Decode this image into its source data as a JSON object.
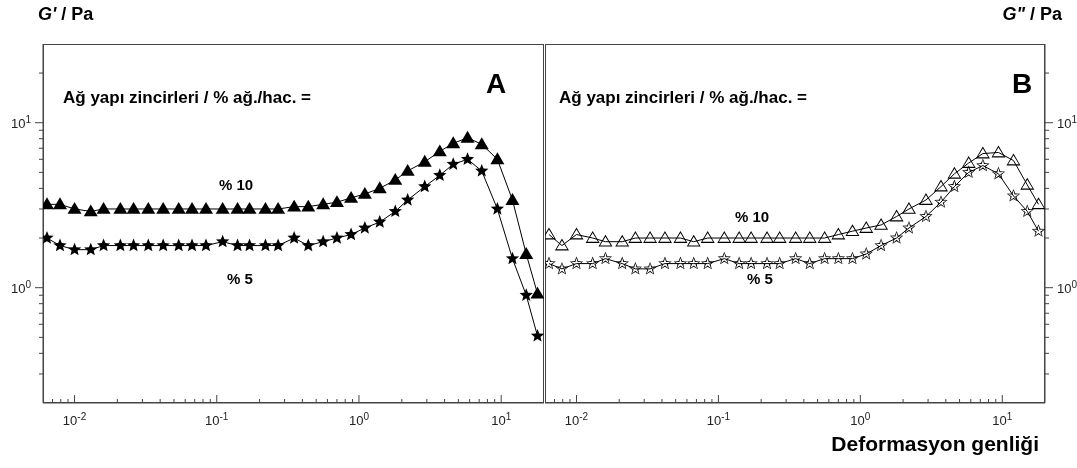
{
  "chart_data": [
    {
      "type": "line",
      "ylabel": "G' / Pa",
      "annotations": [
        "Ağ yapı zincirleri / % ağ./hac. =",
        "A"
      ],
      "x": [
        0.0064,
        0.0079,
        0.01,
        0.013,
        0.016,
        0.021,
        0.026,
        0.033,
        0.042,
        0.054,
        0.067,
        0.084,
        0.11,
        0.14,
        0.17,
        0.22,
        0.27,
        0.35,
        0.44,
        0.56,
        0.7,
        0.88,
        1.1,
        1.4,
        1.8,
        2.2,
        2.9,
        3.7,
        4.6,
        5.8,
        7.3,
        9.4,
        12,
        15,
        18
      ],
      "series": [
        {
          "name": "% 10",
          "color": "#000000",
          "marker": "triangle",
          "values": [
            3.2,
            3.2,
            3.0,
            2.9,
            3.0,
            3.0,
            3.0,
            3.0,
            3.0,
            3.0,
            3.0,
            3.0,
            3.0,
            3.0,
            3.0,
            3.0,
            3.0,
            3.1,
            3.1,
            3.2,
            3.3,
            3.5,
            3.7,
            4.0,
            4.5,
            5.1,
            5.8,
            6.7,
            7.5,
            8.1,
            7.4,
            6.0,
            3.4,
            1.6,
            0.92
          ]
        },
        {
          "name": "% 5",
          "color": "#000000",
          "marker": "star",
          "values": [
            2.0,
            1.8,
            1.7,
            1.7,
            1.8,
            1.8,
            1.8,
            1.8,
            1.8,
            1.8,
            1.8,
            1.8,
            1.9,
            1.8,
            1.8,
            1.8,
            1.8,
            2.0,
            1.8,
            1.9,
            2.0,
            2.1,
            2.3,
            2.5,
            2.9,
            3.4,
            4.1,
            4.8,
            5.6,
            6.0,
            5.1,
            3.0,
            1.5,
            0.9,
            0.51
          ]
        }
      ],
      "log": "xy",
      "xlim": [
        0.006,
        20
      ],
      "ylim": [
        0.2,
        30
      ],
      "xticks": [
        {
          "value": 0.007,
          "label": null
        },
        {
          "value": 0.008,
          "label": null
        },
        {
          "value": 0.009,
          "label": null
        },
        {
          "value": 0.01,
          "label": "10$^{-2}$"
        },
        {
          "value": 0.02,
          "label": null
        },
        {
          "value": 0.03,
          "label": null
        },
        {
          "value": 0.04,
          "label": null
        },
        {
          "value": 0.05,
          "label": null
        },
        {
          "value": 0.06,
          "label": null
        },
        {
          "value": 0.07,
          "label": null
        },
        {
          "value": 0.08,
          "label": null
        },
        {
          "value": 0.09,
          "label": null
        },
        {
          "value": 0.1,
          "label": "10$^{-1}$"
        },
        {
          "value": 0.2,
          "label": null
        },
        {
          "value": 0.3,
          "label": null
        },
        {
          "value": 0.4,
          "label": null
        },
        {
          "value": 0.5,
          "label": null
        },
        {
          "value": 0.6,
          "label": null
        },
        {
          "value": 0.7,
          "label": null
        },
        {
          "value": 0.8,
          "label": null
        },
        {
          "value": 0.9,
          "label": null
        },
        {
          "value": 1,
          "label": "10$^{0}$"
        },
        {
          "value": 2,
          "label": null
        },
        {
          "value": 3,
          "label": null
        },
        {
          "value": 4,
          "label": null
        },
        {
          "value": 5,
          "label": null
        },
        {
          "value": 6,
          "label": null
        },
        {
          "value": 7,
          "label": null
        },
        {
          "value": 8,
          "label": null
        },
        {
          "value": 9,
          "label": null
        },
        {
          "value": 10,
          "label": "10$^{1}$"
        }
      ],
      "yticks": [
        {
          "value": 0.3,
          "label": null
        },
        {
          "value": 0.4,
          "label": null
        },
        {
          "value": 0.5,
          "label": null
        },
        {
          "value": 0.6,
          "label": null
        },
        {
          "value": 0.7,
          "label": null
        },
        {
          "value": 0.8,
          "label": null
        },
        {
          "value": 0.9,
          "label": null
        },
        {
          "value": 1,
          "label": "10$^{0}$"
        },
        {
          "value": 2,
          "label": null
        },
        {
          "value": 3,
          "label": null
        },
        {
          "value": 4,
          "label": null
        },
        {
          "value": 5,
          "label": null
        },
        {
          "value": 6,
          "label": null
        },
        {
          "value": 7,
          "label": null
        },
        {
          "value": 8,
          "label": null
        },
        {
          "value": 9,
          "label": null
        },
        {
          "value": 10,
          "label": "10$^{1}$"
        },
        {
          "value": 20,
          "label": null
        }
      ],
      "grid": false,
      "legend": false
    },
    {
      "type": "line",
      "xlabel": "Deformasyon genliği",
      "ylabel": "G\" / Pa",
      "annotations": [
        "Ağ yapı zincirleri / % ağ./hac. =",
        "B"
      ],
      "x": [
        0.0064,
        0.0079,
        0.01,
        0.013,
        0.016,
        0.021,
        0.026,
        0.033,
        0.042,
        0.054,
        0.067,
        0.084,
        0.11,
        0.14,
        0.17,
        0.22,
        0.27,
        0.35,
        0.44,
        0.56,
        0.7,
        0.88,
        1.1,
        1.4,
        1.8,
        2.2,
        2.9,
        3.7,
        4.6,
        5.8,
        7.3,
        9.4,
        12,
        15,
        18
      ],
      "series": [
        {
          "name": "% 10",
          "color": "#000000",
          "marker": "triangle",
          "values": [
            2.1,
            1.8,
            2.1,
            2.0,
            1.9,
            1.9,
            2.0,
            2.0,
            2.0,
            2.0,
            1.9,
            2.0,
            2.0,
            2.0,
            2.0,
            2.0,
            2.0,
            2.0,
            2.0,
            2.0,
            2.1,
            2.2,
            2.3,
            2.4,
            2.7,
            3.0,
            3.4,
            4.1,
            4.9,
            5.7,
            6.5,
            6.6,
            5.9,
            4.2,
            3.2
          ]
        },
        {
          "name": "% 5",
          "color": "#000000",
          "marker": "star",
          "values": [
            1.4,
            1.3,
            1.4,
            1.4,
            1.5,
            1.4,
            1.3,
            1.3,
            1.4,
            1.4,
            1.4,
            1.4,
            1.5,
            1.4,
            1.4,
            1.4,
            1.4,
            1.5,
            1.4,
            1.5,
            1.5,
            1.5,
            1.6,
            1.8,
            2.0,
            2.3,
            2.7,
            3.3,
            4.1,
            5.0,
            5.5,
            4.9,
            3.6,
            2.9,
            2.2
          ]
        }
      ],
      "log": "xy",
      "xlim": [
        0.006,
        20
      ],
      "ylim": [
        0.2,
        30
      ],
      "xticks": [
        {
          "value": 0.007,
          "label": null
        },
        {
          "value": 0.008,
          "label": null
        },
        {
          "value": 0.009,
          "label": null
        },
        {
          "value": 0.01,
          "label": "10$^{-2}$"
        },
        {
          "value": 0.02,
          "label": null
        },
        {
          "value": 0.03,
          "label": null
        },
        {
          "value": 0.04,
          "label": null
        },
        {
          "value": 0.05,
          "label": null
        },
        {
          "value": 0.06,
          "label": null
        },
        {
          "value": 0.07,
          "label": null
        },
        {
          "value": 0.08,
          "label": null
        },
        {
          "value": 0.09,
          "label": null
        },
        {
          "value": 0.1,
          "label": "10$^{-1}$"
        },
        {
          "value": 0.2,
          "label": null
        },
        {
          "value": 0.3,
          "label": null
        },
        {
          "value": 0.4,
          "label": null
        },
        {
          "value": 0.5,
          "label": null
        },
        {
          "value": 0.6,
          "label": null
        },
        {
          "value": 0.7,
          "label": null
        },
        {
          "value": 0.8,
          "label": null
        },
        {
          "value": 0.9,
          "label": null
        },
        {
          "value": 1,
          "label": "10$^{0}$"
        },
        {
          "value": 2,
          "label": null
        },
        {
          "value": 3,
          "label": null
        },
        {
          "value": 4,
          "label": null
        },
        {
          "value": 5,
          "label": null
        },
        {
          "value": 6,
          "label": null
        },
        {
          "value": 7,
          "label": null
        },
        {
          "value": 8,
          "label": null
        },
        {
          "value": 9,
          "label": null
        },
        {
          "value": 10,
          "label": "10$^{1}$"
        }
      ],
      "yticks": [
        {
          "value": 0.3,
          "label": null
        },
        {
          "value": 0.4,
          "label": null
        },
        {
          "value": 0.5,
          "label": null
        },
        {
          "value": 0.6,
          "label": null
        },
        {
          "value": 0.7,
          "label": null
        },
        {
          "value": 0.8,
          "label": null
        },
        {
          "value": 0.9,
          "label": null
        },
        {
          "value": 1,
          "label": "10$^{0}$"
        },
        {
          "value": 2,
          "label": null
        },
        {
          "value": 3,
          "label": null
        },
        {
          "value": 4,
          "label": null
        },
        {
          "value": 5,
          "label": null
        },
        {
          "value": 6,
          "label": null
        },
        {
          "value": 7,
          "label": null
        },
        {
          "value": 8,
          "label": null
        },
        {
          "value": 9,
          "label": null
        },
        {
          "value": 10,
          "label": "10$^{1}$"
        },
        {
          "value": 20,
          "label": null
        }
      ],
      "grid": false,
      "legend": false
    }
  ]
}
